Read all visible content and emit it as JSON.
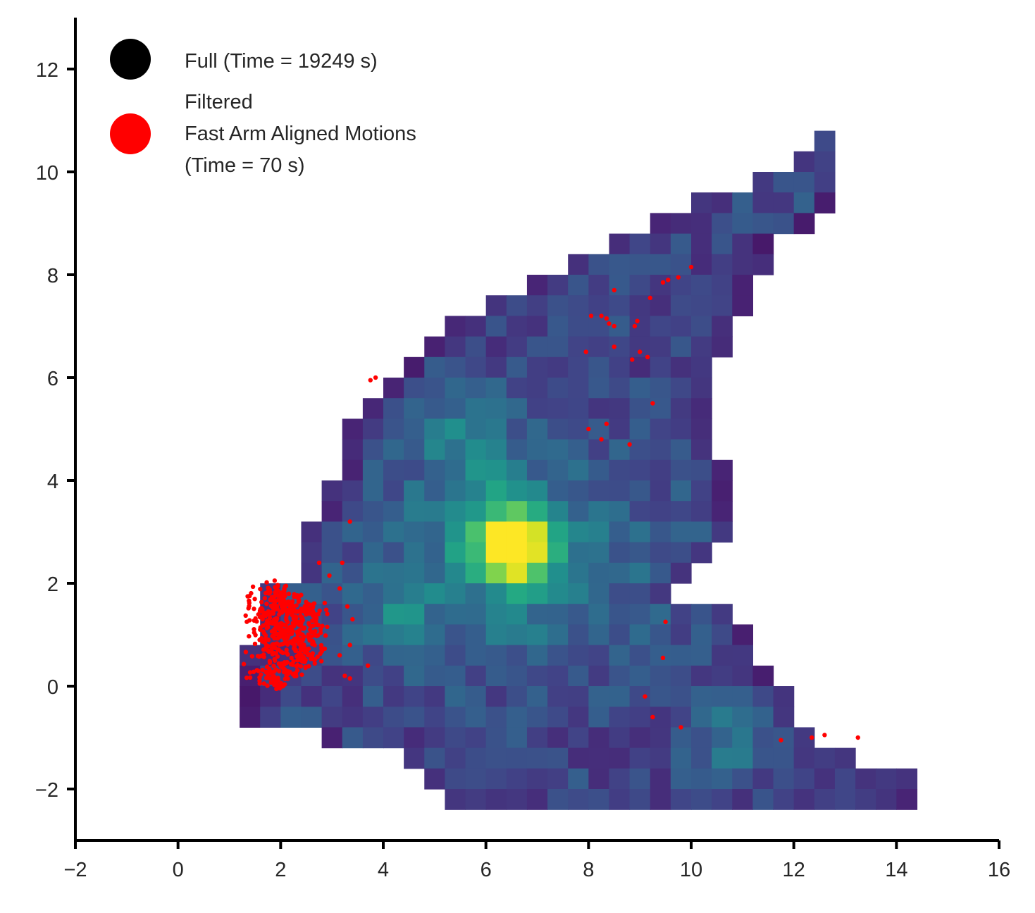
{
  "chart_data": {
    "type": "heatmap",
    "title": "",
    "xlabel": "",
    "ylabel": "",
    "xlim": [
      -2,
      16
    ],
    "ylim": [
      -3,
      13
    ],
    "x_ticks": [
      -2,
      0,
      2,
      4,
      6,
      8,
      10,
      12,
      14,
      16
    ],
    "y_ticks": [
      -2,
      0,
      2,
      4,
      6,
      8,
      10,
      12
    ],
    "x_tick_labels": [
      "−2",
      "0",
      "2",
      "4",
      "6",
      "8",
      "10",
      "12",
      "14",
      "16"
    ],
    "y_tick_labels": [
      "−2",
      "0",
      "2",
      "4",
      "6",
      "8",
      "10",
      "12"
    ],
    "grid": false,
    "colormap": "viridis",
    "heatmap": {
      "bin_size": 0.4,
      "description_value_range": [
        0,
        1
      ],
      "region_rows": [
        {
          "y_from": 10.4,
          "y_to": 10.8,
          "x_from": 12.4,
          "x_to": 12.8
        },
        {
          "y_from": 10.0,
          "y_to": 10.4,
          "x_from": 12.0,
          "x_to": 12.8
        },
        {
          "y_from": 9.6,
          "y_to": 10.0,
          "x_from": 11.2,
          "x_to": 12.8
        },
        {
          "y_from": 9.2,
          "y_to": 9.6,
          "x_from": 10.0,
          "x_to": 12.8
        },
        {
          "y_from": 8.8,
          "y_to": 9.2,
          "x_from": 9.2,
          "x_to": 12.4
        },
        {
          "y_from": 8.4,
          "y_to": 8.8,
          "x_from": 8.4,
          "x_to": 11.6
        },
        {
          "y_from": 8.0,
          "y_to": 8.4,
          "x_from": 7.6,
          "x_to": 11.6
        },
        {
          "y_from": 7.6,
          "y_to": 8.0,
          "x_from": 6.8,
          "x_to": 11.2
        },
        {
          "y_from": 7.2,
          "y_to": 7.6,
          "x_from": 6.0,
          "x_to": 11.2
        },
        {
          "y_from": 6.8,
          "y_to": 7.2,
          "x_from": 5.2,
          "x_to": 10.8
        },
        {
          "y_from": 6.4,
          "y_to": 6.8,
          "x_from": 4.8,
          "x_to": 10.8
        },
        {
          "y_from": 6.0,
          "y_to": 6.4,
          "x_from": 4.4,
          "x_to": 10.4
        },
        {
          "y_from": 5.6,
          "y_to": 6.0,
          "x_from": 4.0,
          "x_to": 10.4
        },
        {
          "y_from": 5.2,
          "y_to": 5.6,
          "x_from": 3.6,
          "x_to": 10.4
        },
        {
          "y_from": 4.8,
          "y_to": 5.2,
          "x_from": 3.2,
          "x_to": 10.4
        },
        {
          "y_from": 4.4,
          "y_to": 4.8,
          "x_from": 3.2,
          "x_to": 10.4
        },
        {
          "y_from": 4.0,
          "y_to": 4.4,
          "x_from": 3.2,
          "x_to": 10.8
        },
        {
          "y_from": 3.6,
          "y_to": 4.0,
          "x_from": 2.8,
          "x_to": 10.8
        },
        {
          "y_from": 3.2,
          "y_to": 3.6,
          "x_from": 2.8,
          "x_to": 10.8
        },
        {
          "y_from": 2.8,
          "y_to": 3.2,
          "x_from": 2.4,
          "x_to": 10.8
        },
        {
          "y_from": 2.4,
          "y_to": 2.8,
          "x_from": 2.4,
          "x_to": 10.4
        },
        {
          "y_from": 2.0,
          "y_to": 2.4,
          "x_from": 2.4,
          "x_to": 10.0
        },
        {
          "y_from": 1.6,
          "y_to": 2.0,
          "x_from": 1.6,
          "x_to": 9.6
        },
        {
          "y_from": 1.2,
          "y_to": 1.6,
          "x_from": 1.6,
          "x_to": 10.8
        },
        {
          "y_from": 0.8,
          "y_to": 1.2,
          "x_from": 1.6,
          "x_to": 11.2
        },
        {
          "y_from": 0.4,
          "y_to": 0.8,
          "x_from": 1.2,
          "x_to": 11.2
        },
        {
          "y_from": 0.0,
          "y_to": 0.4,
          "x_from": 1.2,
          "x_to": 11.6
        },
        {
          "y_from": -0.4,
          "y_to": 0.0,
          "x_from": 1.2,
          "x_to": 12.0
        },
        {
          "y_from": -0.8,
          "y_to": -0.4,
          "x_from": 1.2,
          "x_to": 12.0
        },
        {
          "y_from": -1.2,
          "y_to": -0.8,
          "x_from": 2.8,
          "x_to": 12.4
        },
        {
          "y_from": -1.6,
          "y_to": -1.2,
          "x_from": 4.4,
          "x_to": 13.2
        },
        {
          "y_from": -2.0,
          "y_to": -1.6,
          "x_from": 4.8,
          "x_to": 14.4
        },
        {
          "y_from": -2.4,
          "y_to": -2.0,
          "x_from": 5.2,
          "x_to": 14.4
        }
      ]
    },
    "series": [
      {
        "name": "Full (Time = 19249 s)",
        "type": "heatmap",
        "color": "#000000"
      },
      {
        "name": "Filtered\nFast Arm Aligned Motions\n(Time = 70 s)",
        "type": "scatter",
        "color": "#ff0000",
        "points": [
          [
            10.0,
            8.15
          ],
          [
            9.75,
            7.95
          ],
          [
            9.55,
            7.9
          ],
          [
            9.45,
            7.85
          ],
          [
            9.2,
            7.55
          ],
          [
            8.5,
            7.7
          ],
          [
            8.05,
            7.2
          ],
          [
            8.25,
            7.2
          ],
          [
            8.35,
            7.15
          ],
          [
            8.4,
            7.05
          ],
          [
            8.5,
            7.0
          ],
          [
            8.95,
            7.1
          ],
          [
            8.9,
            7.0
          ],
          [
            8.5,
            6.6
          ],
          [
            7.95,
            6.5
          ],
          [
            9.0,
            6.5
          ],
          [
            9.15,
            6.4
          ],
          [
            8.85,
            6.35
          ],
          [
            3.85,
            6.0
          ],
          [
            3.75,
            5.95
          ],
          [
            9.25,
            5.5
          ],
          [
            8.0,
            5.0
          ],
          [
            8.35,
            5.1
          ],
          [
            8.25,
            4.8
          ],
          [
            8.8,
            4.7
          ],
          [
            3.35,
            3.2
          ],
          [
            3.2,
            2.4
          ],
          [
            9.5,
            1.25
          ],
          [
            9.45,
            0.55
          ],
          [
            9.1,
            -0.2
          ],
          [
            9.25,
            -0.6
          ],
          [
            9.8,
            -0.8
          ],
          [
            11.75,
            -1.05
          ],
          [
            12.35,
            -1.0
          ],
          [
            12.6,
            -0.95
          ],
          [
            13.25,
            -1.0
          ],
          [
            3.7,
            0.4
          ],
          [
            3.35,
            0.8
          ],
          [
            3.25,
            0.2
          ],
          [
            3.35,
            0.15
          ],
          [
            2.75,
            2.4
          ],
          [
            2.95,
            2.15
          ],
          [
            3.15,
            1.9
          ],
          [
            3.3,
            1.55
          ],
          [
            3.4,
            1.3
          ],
          [
            3.15,
            0.6
          ]
        ]
      }
    ],
    "legend": {
      "placement": "upper-left",
      "entries": [
        {
          "lines": [
            "Full (Time = 19249 s)"
          ],
          "color": "#000000"
        },
        {
          "lines": [
            "Filtered",
            "Fast Arm Aligned Motions",
            "(Time = 70 s)"
          ],
          "color": "#ff0000"
        }
      ]
    },
    "red_cluster": {
      "center": [
        2.1,
        1.0
      ],
      "extent_x": [
        1.5,
        3.2
      ],
      "extent_y": [
        0.0,
        2.2
      ]
    },
    "hotspot": {
      "peak_at": [
        6.55,
        2.6
      ],
      "secondary": [
        [
          6.2,
          3.4
        ],
        [
          5.6,
          4.8
        ],
        [
          4.2,
          1.4
        ],
        [
          10.8,
          -1.0
        ],
        [
          12.6,
          10.6
        ]
      ]
    }
  }
}
